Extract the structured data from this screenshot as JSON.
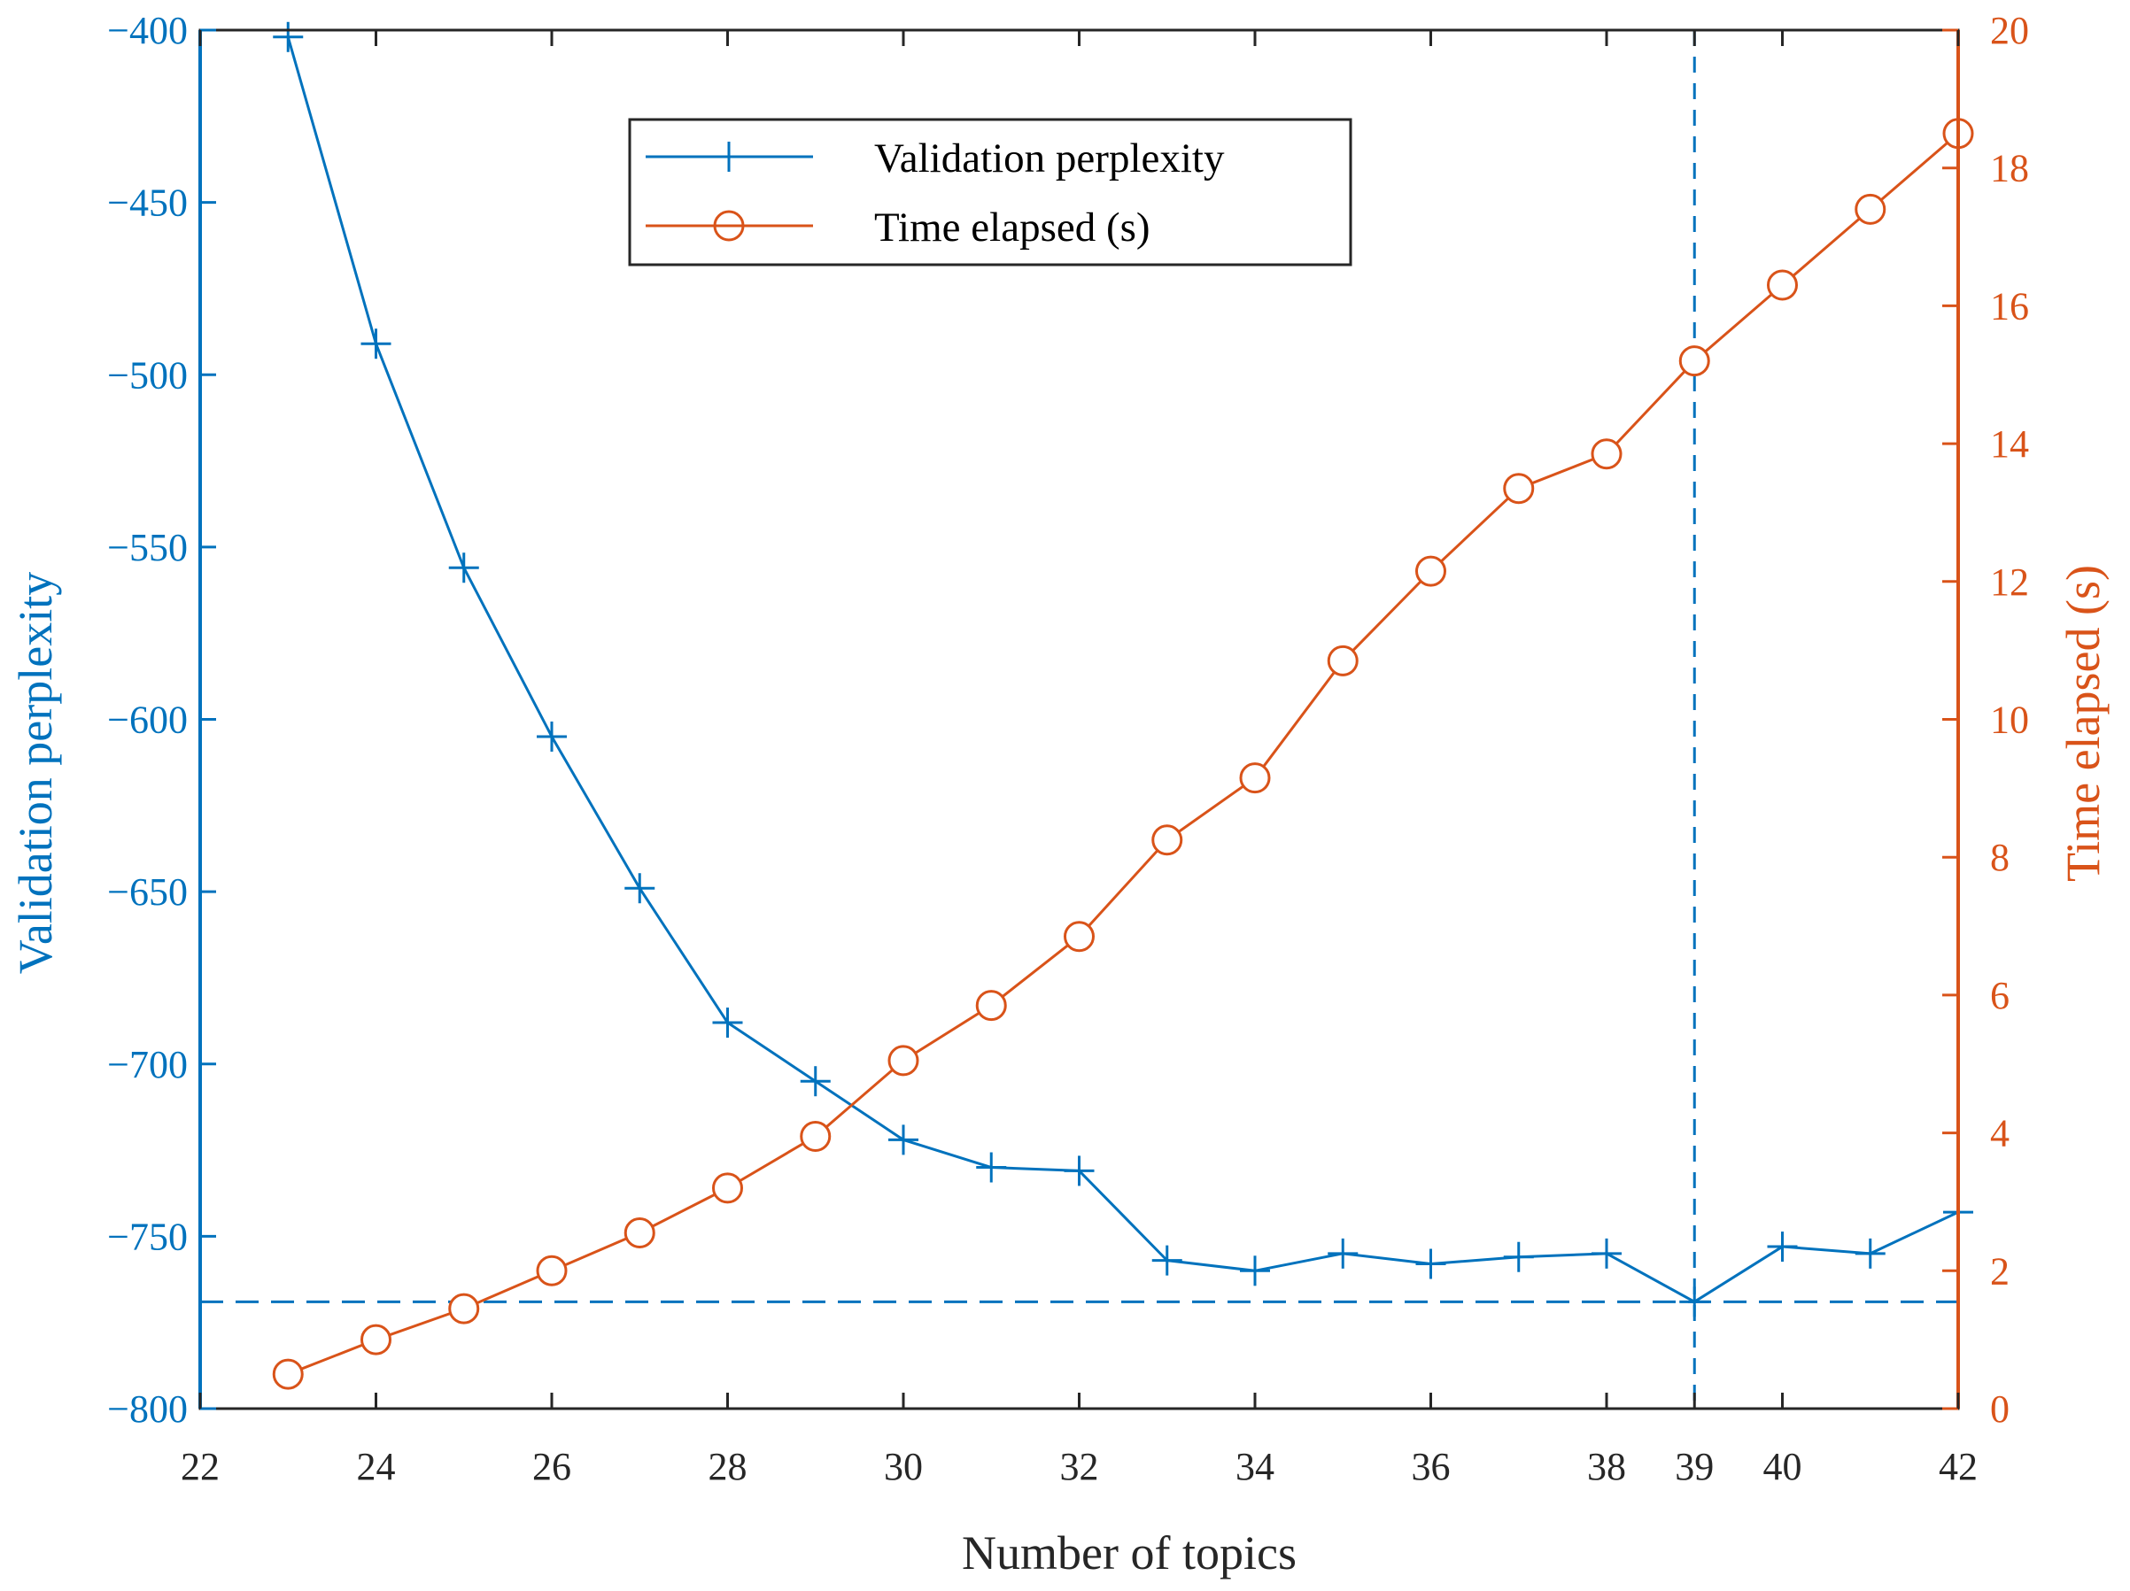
{
  "chart_data": {
    "type": "line",
    "title": "",
    "xlabel": "Number of topics",
    "ylabel": "Validation perplexity",
    "y2label": "Time elapsed (s)",
    "xlim": [
      22,
      42
    ],
    "ylim": [
      -800,
      -400
    ],
    "y2lim": [
      0,
      20
    ],
    "x_ticks": [
      22,
      24,
      26,
      28,
      30,
      32,
      34,
      36,
      38,
      39,
      40,
      42
    ],
    "y_ticks": [
      -400,
      -450,
      -500,
      -550,
      -600,
      -650,
      -700,
      -750,
      -800
    ],
    "y2_ticks": [
      0,
      2,
      4,
      6,
      8,
      10,
      12,
      14,
      16,
      18,
      20
    ],
    "y_tick_labels": [
      "−400",
      "−450",
      "−500",
      "−550",
      "−600",
      "−650",
      "−700",
      "−750",
      "−800"
    ],
    "colors": {
      "left": "#0072BD",
      "right": "#D95319"
    },
    "reference_lines": [
      {
        "orientation": "vertical",
        "axis": "x",
        "value": 39,
        "style": "dashed"
      },
      {
        "orientation": "horizontal",
        "axis": "y",
        "value": -769,
        "style": "dashed"
      }
    ],
    "series": [
      {
        "name": "Validation perplexity",
        "axis": "left",
        "marker": "plus",
        "x": [
          23,
          24,
          25,
          26,
          27,
          28,
          29,
          30,
          31,
          32,
          33,
          34,
          35,
          36,
          37,
          38,
          39,
          40,
          41,
          42
        ],
        "values": [
          -402,
          -491,
          -556,
          -605,
          -649,
          -688,
          -705,
          -722,
          -730,
          -731,
          -757,
          -760,
          -755,
          -758,
          -756,
          -755,
          -769,
          -753,
          -755,
          -743
        ]
      },
      {
        "name": "Time elapsed (s)",
        "axis": "right",
        "marker": "circle",
        "x": [
          23,
          24,
          25,
          26,
          27,
          28,
          29,
          30,
          31,
          32,
          33,
          34,
          35,
          36,
          37,
          38,
          39,
          40,
          41,
          42
        ],
        "values": [
          0.5,
          1.0,
          1.45,
          2.0,
          2.55,
          3.2,
          3.95,
          5.05,
          5.85,
          6.85,
          8.25,
          9.15,
          10.85,
          12.15,
          13.35,
          13.85,
          15.2,
          16.3,
          17.4,
          18.5
        ]
      }
    ],
    "legend": {
      "position": "top-center",
      "entries": [
        "Validation perplexity",
        "Time elapsed (s)"
      ]
    }
  }
}
